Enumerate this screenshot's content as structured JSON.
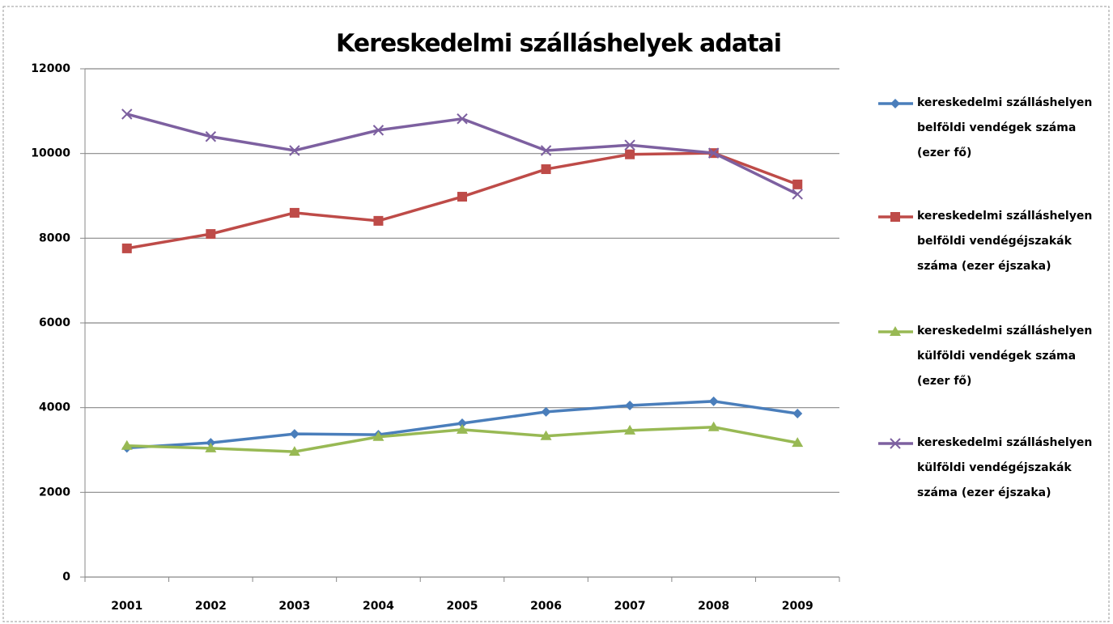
{
  "chart_data": {
    "type": "line",
    "title": "Kereskedelmi szálláshelyek adatai",
    "categories": [
      "2001",
      "2002",
      "2003",
      "2004",
      "2005",
      "2006",
      "2007",
      "2008",
      "2009"
    ],
    "series": [
      {
        "name": "kereskedelmi szálláshelyen belföldi vendégek száma (ezer fő)",
        "color": "#4a7ebb",
        "marker": "diamond",
        "values": [
          3050,
          3170,
          3380,
          3360,
          3630,
          3900,
          4050,
          4150,
          3860
        ]
      },
      {
        "name": "kereskedelmi szálláshelyen belföldi vendégéjszakák száma (ezer éjszaka)",
        "color": "#be4b48",
        "marker": "square",
        "values": [
          7760,
          8100,
          8600,
          8410,
          8980,
          9630,
          9980,
          10010,
          9270
        ]
      },
      {
        "name": "kereskedelmi szálláshelyen külföldi vendégek száma (ezer fő)",
        "color": "#98b954",
        "marker": "triangle",
        "values": [
          3100,
          3040,
          2960,
          3310,
          3480,
          3330,
          3460,
          3540,
          3170
        ]
      },
      {
        "name": "kereskedelmi szálláshelyen külföldi vendégéjszakák száma (ezer éjszaka)",
        "color": "#7d60a0",
        "marker": "x",
        "values": [
          10930,
          10400,
          10070,
          10550,
          10820,
          10070,
          10200,
          10010,
          9040
        ]
      }
    ],
    "ylim": [
      0,
      12000
    ],
    "yticks": [
      0,
      2000,
      4000,
      6000,
      8000,
      10000,
      12000
    ],
    "grid": true,
    "legend": "right"
  }
}
